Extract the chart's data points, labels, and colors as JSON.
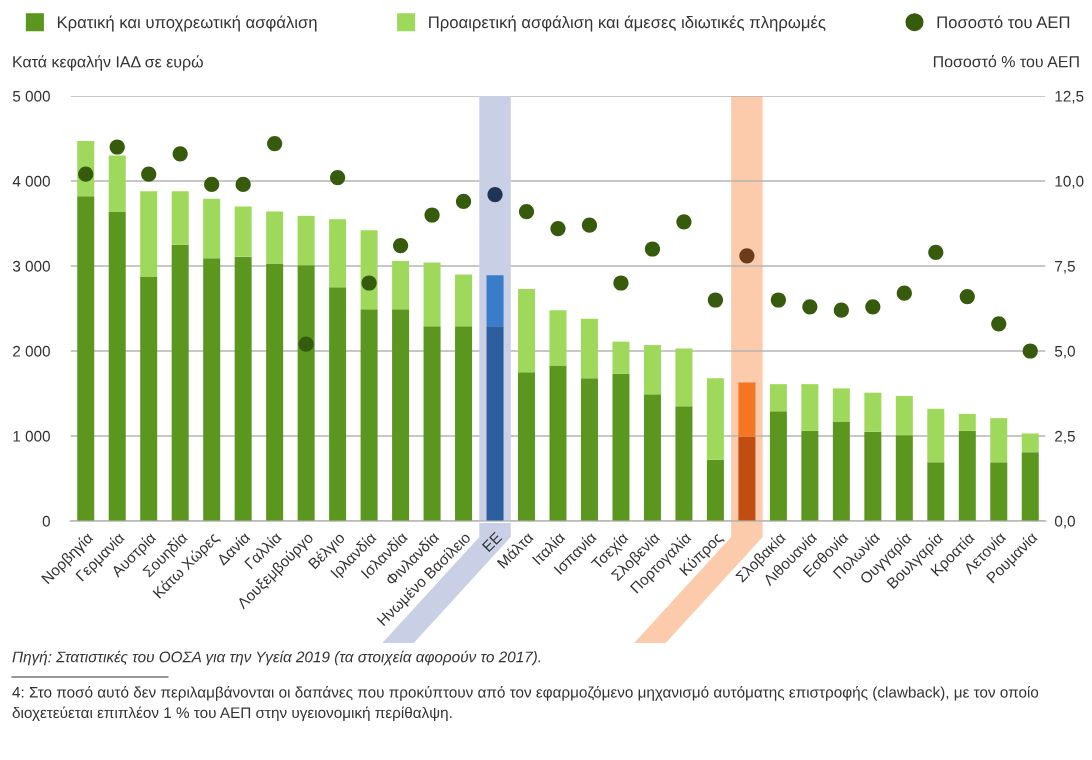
{
  "chart_data": {
    "type": "bar",
    "stacked": true,
    "categories": [
      "Νορβηγία",
      "Γερμανία",
      "Αυστρία",
      "Σουηδία",
      "Κάτω Χώρες",
      "Δανία",
      "Γαλλία",
      "Λουξεμβούργο",
      "Βέλγιο",
      "Ιρλανδία",
      "Ισλανδία",
      "Φινλανδία",
      "Ηνωμένο Βασίλειο",
      "ΕΕ",
      "Μάλτα",
      "Ιταλία",
      "Ισπανία",
      "Τσεχία",
      "Σλοβενία",
      "Πορτογαλία",
      "Κύπρος",
      null,
      "Σλοβακία",
      "Λιθουανία",
      "Εσθονία",
      "Πολωνία",
      "Ουγγαρία",
      "Βουλγαρία",
      "Κροατία",
      "Λετονία",
      "Ρουμανία"
    ],
    "series": [
      {
        "name": "Κρατική και υποχρεωτική ασφάλιση",
        "color": "#5b961f",
        "colors": [
          "#5b961f",
          "#5b961f",
          "#5b961f",
          "#5b961f",
          "#5b961f",
          "#5b961f",
          "#5b961f",
          "#5b961f",
          "#5b961f",
          "#5b961f",
          "#5b961f",
          "#5b961f",
          "#5b961f",
          "#2b5f9e",
          "#5b961f",
          "#5b961f",
          "#5b961f",
          "#5b961f",
          "#5b961f",
          "#5b961f",
          "#5b961f",
          "#c04e13",
          "#5b961f",
          "#5b961f",
          "#5b961f",
          "#5b961f",
          "#5b961f",
          "#5b961f",
          "#5b961f",
          "#5b961f",
          "#5b961f"
        ],
        "values": [
          3820,
          3640,
          2870,
          3250,
          3090,
          3110,
          3030,
          3010,
          2750,
          2490,
          2490,
          2290,
          2290,
          2290,
          1750,
          1830,
          1680,
          1730,
          1490,
          1350,
          720,
          990,
          1290,
          1060,
          1170,
          1050,
          1010,
          690,
          1060,
          690,
          810
        ]
      },
      {
        "name": "Προαιρετική ασφάλιση και άμεσες ιδιωτικές πληρωμές",
        "color": "#9fd95b",
        "colors": [
          "#9fd95b",
          "#9fd95b",
          "#9fd95b",
          "#9fd95b",
          "#9fd95b",
          "#9fd95b",
          "#9fd95b",
          "#9fd95b",
          "#9fd95b",
          "#9fd95b",
          "#9fd95b",
          "#9fd95b",
          "#9fd95b",
          "#3a7cc7",
          "#9fd95b",
          "#9fd95b",
          "#9fd95b",
          "#9fd95b",
          "#9fd95b",
          "#9fd95b",
          "#9fd95b",
          "#f47623",
          "#9fd95b",
          "#9fd95b",
          "#9fd95b",
          "#9fd95b",
          "#9fd95b",
          "#9fd95b",
          "#9fd95b",
          "#9fd95b",
          "#9fd95b"
        ],
        "values": [
          650,
          660,
          1010,
          630,
          700,
          590,
          610,
          580,
          800,
          930,
          570,
          750,
          610,
          600,
          980,
          650,
          700,
          380,
          580,
          680,
          960,
          640,
          320,
          550,
          390,
          460,
          460,
          630,
          200,
          520,
          220
        ]
      },
      {
        "name": "Ποσοστό του ΑΕΠ",
        "type": "scatter",
        "axis": "y2",
        "color": "#375b0d",
        "colors": [
          "#375b0d",
          "#375b0d",
          "#375b0d",
          "#375b0d",
          "#375b0d",
          "#375b0d",
          "#375b0d",
          "#375b0d",
          "#375b0d",
          "#375b0d",
          "#375b0d",
          "#375b0d",
          "#375b0d",
          "#1f3556",
          "#375b0d",
          "#375b0d",
          "#375b0d",
          "#375b0d",
          "#375b0d",
          "#375b0d",
          "#375b0d",
          "#6e3a1c",
          "#375b0d",
          "#375b0d",
          "#375b0d",
          "#375b0d",
          "#375b0d",
          "#375b0d",
          "#375b0d",
          "#375b0d",
          "#375b0d"
        ],
        "values": [
          10.2,
          11.0,
          10.2,
          10.8,
          9.9,
          9.9,
          11.1,
          5.2,
          10.1,
          7.0,
          8.1,
          9.0,
          9.4,
          9.6,
          9.1,
          8.6,
          8.7,
          7.0,
          8.0,
          8.8,
          6.5,
          7.8,
          6.5,
          6.3,
          6.2,
          6.3,
          6.7,
          7.9,
          6.6,
          5.8,
          5.0
        ]
      }
    ],
    "ylabel": "Κατά κεφαλήν ΙΑΔ σε ευρώ",
    "y2label": "Ποσοστό % του ΑΕΠ",
    "ylim": [
      0,
      5000
    ],
    "yticks": [
      0,
      {
        "value": 1000,
        "label": "1 000"
      },
      {
        "value": 2000,
        "label": "2 000"
      },
      {
        "value": 3000,
        "label": "3 000"
      },
      {
        "value": 4000,
        "label": "4 000"
      },
      {
        "value": 5000,
        "label": "5 000"
      }
    ],
    "y2lim": [
      0,
      12.5
    ],
    "y2ticks": [
      {
        "value": 0,
        "label": "0,0"
      },
      {
        "value": 2.5,
        "label": "2,5"
      },
      {
        "value": 5,
        "label": "5,0"
      },
      {
        "value": 7.5,
        "label": "7,5"
      },
      {
        "value": 10,
        "label": "10,0"
      },
      {
        "value": 12.5,
        "label": "12,5"
      }
    ],
    "grid": "y",
    "legend": "top",
    "marker": "circle",
    "bands": [
      {
        "axis": "x",
        "from": "ΕΕ",
        "to": "ΕΕ",
        "color": "#c9d0e6"
      }
    ],
    "annotations": [
      "Πηγή: Στατιστικές του ΟΟΣΑ για την Υγεία 2019 (τα στοιχεία αφορούν το 2017).",
      "4: Στο ποσό αυτό δεν περιλαμβάνονται οι δαπάνες που προκύπτουν από τον εφαρμοζόμενο μηχανισμό αυτόματης επιστροφής (clawback), με τον οποίο διοχετεύεται επιπλέον 1 % του ΑΕΠ στην υγειονομική περίθαλψη."
    ]
  }
}
